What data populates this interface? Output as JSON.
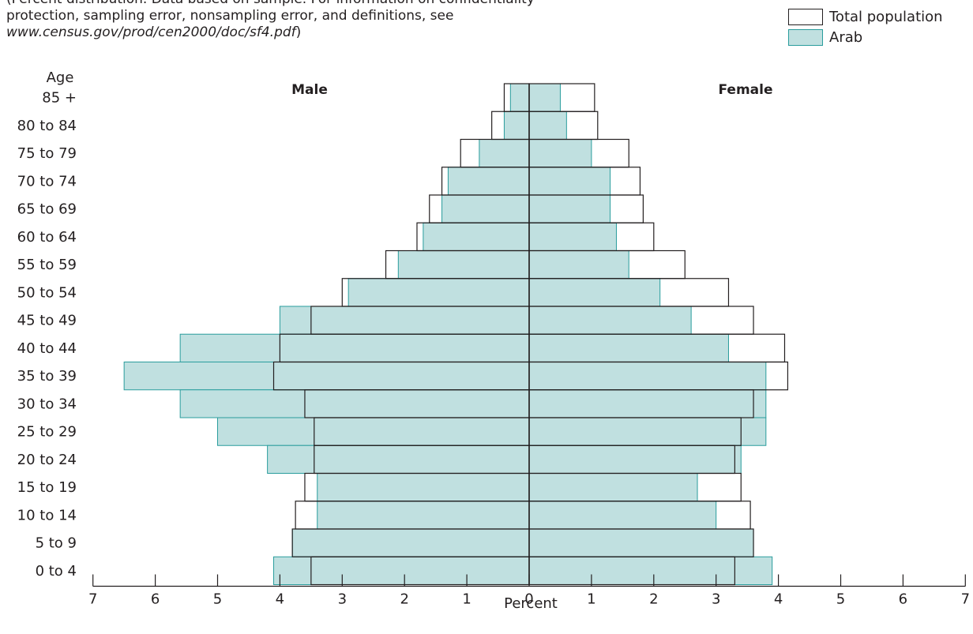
{
  "note": {
    "line1": "(Percent distribution. Data based on sample. For information on confidentiality",
    "line2": "protection, sampling error, nonsampling error, and definitions, see",
    "url": "www.census.gov/prod/cen2000/doc/sf4.pdf",
    "close": ")"
  },
  "legend": {
    "total_label": "Total population",
    "arab_label": "Arab"
  },
  "colors": {
    "total_fill": "#ffffff",
    "total_stroke": "#231f20",
    "arab_fill": "#c0e0e0",
    "arab_stroke": "#2a9d9d"
  },
  "chart_data": {
    "type": "bar",
    "orientation": "horizontal-pyramid",
    "age_title": "Age",
    "male_label": "Male",
    "female_label": "Female",
    "xlabel": "Percent",
    "xlim": [
      0,
      7
    ],
    "xticks": [
      "7",
      "6",
      "5",
      "4",
      "3",
      "2",
      "1",
      "0",
      "1",
      "2",
      "3",
      "4",
      "5",
      "6",
      "7"
    ],
    "categories": [
      "85 +",
      "80 to 84",
      "75 to 79",
      "70 to 74",
      "65 to 69",
      "60 to 64",
      "55 to 59",
      "50 to 54",
      "45 to 49",
      "40 to 44",
      "35 to 39",
      "30 to 34",
      "25 to 29",
      "20 to 24",
      "15 to 19",
      "10 to 14",
      "5 to 9",
      "0 to 4"
    ],
    "series": [
      {
        "name": "Total population",
        "male": [
          0.4,
          0.6,
          1.1,
          1.4,
          1.6,
          1.8,
          2.3,
          3.0,
          3.5,
          4.0,
          4.1,
          3.6,
          3.45,
          3.45,
          3.6,
          3.75,
          3.8,
          3.5
        ],
        "female": [
          1.05,
          1.1,
          1.6,
          1.78,
          1.83,
          2.0,
          2.5,
          3.2,
          3.6,
          4.1,
          4.15,
          3.6,
          3.4,
          3.3,
          3.4,
          3.55,
          3.6,
          3.3
        ]
      },
      {
        "name": "Arab",
        "male": [
          0.3,
          0.4,
          0.8,
          1.3,
          1.4,
          1.7,
          2.1,
          2.9,
          4.0,
          5.6,
          6.5,
          5.6,
          5.0,
          4.2,
          3.4,
          3.4,
          3.8,
          4.1
        ],
        "female": [
          0.5,
          0.6,
          1.0,
          1.3,
          1.3,
          1.4,
          1.6,
          2.1,
          2.6,
          3.2,
          3.8,
          3.8,
          3.8,
          3.4,
          2.7,
          3.0,
          3.6,
          3.9
        ]
      }
    ]
  }
}
